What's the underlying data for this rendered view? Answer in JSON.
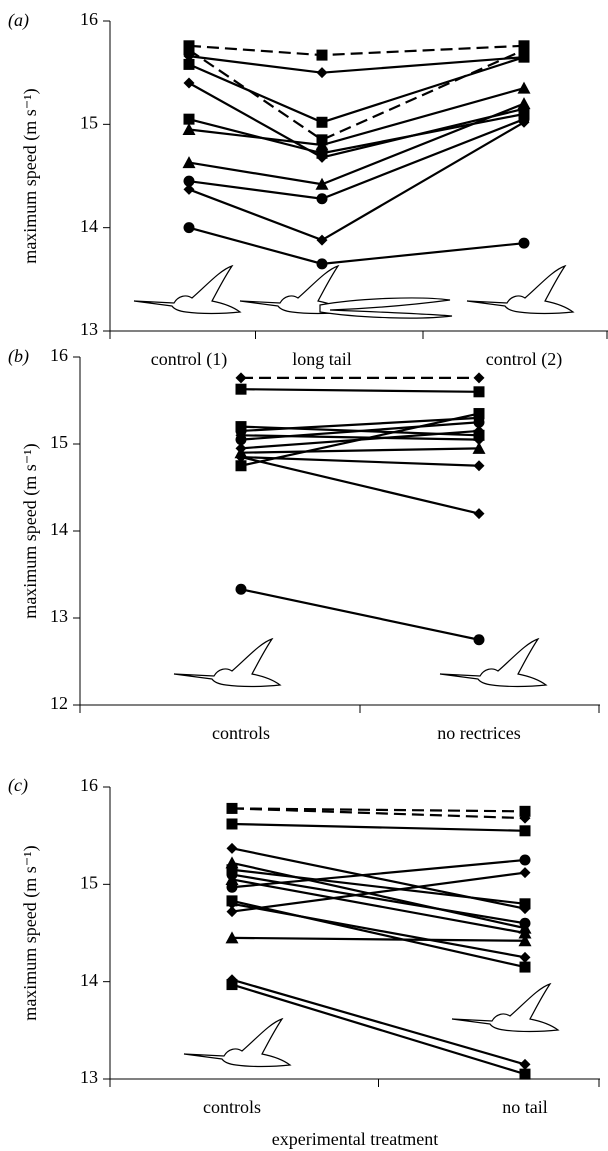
{
  "chart_data": [
    {
      "type": "line",
      "panel_label": "(a)",
      "y_label": "maximum speed (m s⁻¹)",
      "categories": [
        "control (1)",
        "long tail",
        "control (2)"
      ],
      "ylim": [
        13,
        16
      ],
      "yticks": [
        13,
        14,
        15,
        16
      ],
      "series": [
        {
          "color": "#000000",
          "marker": "square",
          "dash": true,
          "values": [
            15.76,
            15.67,
            15.76
          ]
        },
        {
          "color": "#000000",
          "marker": "square",
          "dash": true,
          "values": [
            15.72,
            14.85,
            15.72
          ]
        },
        {
          "color": "#000000",
          "marker": "diamond",
          "dash": false,
          "values": [
            15.66,
            15.5,
            15.65
          ]
        },
        {
          "color": "#000000",
          "marker": "square",
          "dash": false,
          "values": [
            15.58,
            15.02,
            15.65
          ]
        },
        {
          "color": "#000000",
          "marker": "diamond",
          "dash": false,
          "values": [
            15.4,
            14.68,
            15.15
          ]
        },
        {
          "color": "#000000",
          "marker": "square",
          "dash": false,
          "values": [
            15.05,
            14.72,
            15.1
          ]
        },
        {
          "color": "#000000",
          "marker": "triangle",
          "dash": false,
          "values": [
            14.95,
            14.8,
            15.35
          ]
        },
        {
          "color": "#000000",
          "marker": "triangle",
          "dash": false,
          "values": [
            14.63,
            14.42,
            15.2
          ]
        },
        {
          "color": "#000000",
          "marker": "circle",
          "dash": false,
          "values": [
            14.45,
            14.28,
            15.05
          ]
        },
        {
          "color": "#000000",
          "marker": "diamond",
          "dash": false,
          "values": [
            14.37,
            13.88,
            15.02
          ]
        },
        {
          "color": "#000000",
          "marker": "circle",
          "dash": false,
          "values": [
            14.0,
            13.65,
            13.85
          ]
        }
      ]
    },
    {
      "type": "line",
      "panel_label": "(b)",
      "y_label": "maximum speed (m s⁻¹)",
      "categories": [
        "controls",
        "no rectrices"
      ],
      "ylim": [
        12,
        16
      ],
      "yticks": [
        12,
        13,
        14,
        15,
        16
      ],
      "series": [
        {
          "color": "#000000",
          "marker": "diamond",
          "dash": true,
          "values": [
            15.76,
            15.76
          ]
        },
        {
          "color": "#000000",
          "marker": "square",
          "dash": false,
          "values": [
            15.63,
            15.6
          ]
        },
        {
          "color": "#000000",
          "marker": "square",
          "dash": false,
          "values": [
            15.2,
            15.1
          ]
        },
        {
          "color": "#000000",
          "marker": "circle",
          "dash": false,
          "values": [
            15.15,
            15.3
          ]
        },
        {
          "color": "#000000",
          "marker": "diamond",
          "dash": false,
          "values": [
            15.1,
            15.05
          ]
        },
        {
          "color": "#000000",
          "marker": "circle",
          "dash": false,
          "values": [
            15.05,
            15.25
          ]
        },
        {
          "color": "#000000",
          "marker": "triangle",
          "dash": false,
          "values": [
            14.9,
            14.95
          ]
        },
        {
          "color": "#000000",
          "marker": "diamond",
          "dash": false,
          "values": [
            14.95,
            15.15
          ]
        },
        {
          "color": "#000000",
          "marker": "square",
          "dash": false,
          "values": [
            14.75,
            15.35
          ]
        },
        {
          "color": "#000000",
          "marker": "diamond",
          "dash": false,
          "values": [
            14.85,
            14.75
          ]
        },
        {
          "color": "#000000",
          "marker": "diamond",
          "dash": false,
          "values": [
            14.85,
            14.2
          ]
        },
        {
          "color": "#000000",
          "marker": "circle",
          "dash": false,
          "values": [
            13.33,
            12.75
          ]
        }
      ]
    },
    {
      "type": "line",
      "panel_label": "(c)",
      "y_label": "maximum speed (m s⁻¹)",
      "x_label": "experimental treatment",
      "categories": [
        "controls",
        "no tail"
      ],
      "ylim": [
        13,
        16
      ],
      "yticks": [
        13,
        14,
        15,
        16
      ],
      "series": [
        {
          "color": "#000000",
          "marker": "square",
          "dash": true,
          "values": [
            15.78,
            15.75
          ]
        },
        {
          "color": "#000000",
          "marker": "diamond",
          "dash": true,
          "values": [
            15.78,
            15.68
          ]
        },
        {
          "color": "#000000",
          "marker": "square",
          "dash": false,
          "values": [
            15.62,
            15.55
          ]
        },
        {
          "color": "#000000",
          "marker": "diamond",
          "dash": false,
          "values": [
            15.37,
            14.75
          ]
        },
        {
          "color": "#000000",
          "marker": "triangle",
          "dash": false,
          "values": [
            15.22,
            14.55
          ]
        },
        {
          "color": "#000000",
          "marker": "square",
          "dash": false,
          "values": [
            15.15,
            14.8
          ]
        },
        {
          "color": "#000000",
          "marker": "circle",
          "dash": false,
          "values": [
            15.1,
            14.6
          ]
        },
        {
          "color": "#000000",
          "marker": "triangle",
          "dash": false,
          "values": [
            15.05,
            14.5
          ]
        },
        {
          "color": "#000000",
          "marker": "circle",
          "dash": false,
          "values": [
            14.97,
            15.25
          ]
        },
        {
          "color": "#000000",
          "marker": "diamond",
          "dash": false,
          "values": [
            14.72,
            15.12
          ]
        },
        {
          "color": "#000000",
          "marker": "square",
          "dash": false,
          "values": [
            14.83,
            14.15
          ]
        },
        {
          "color": "#000000",
          "marker": "diamond",
          "dash": false,
          "values": [
            14.8,
            14.25
          ]
        },
        {
          "color": "#000000",
          "marker": "triangle",
          "dash": false,
          "values": [
            14.45,
            14.42
          ]
        },
        {
          "color": "#000000",
          "marker": "diamond",
          "dash": false,
          "values": [
            14.02,
            13.15
          ]
        },
        {
          "color": "#000000",
          "marker": "square",
          "dash": false,
          "values": [
            13.97,
            13.05
          ]
        }
      ]
    }
  ]
}
